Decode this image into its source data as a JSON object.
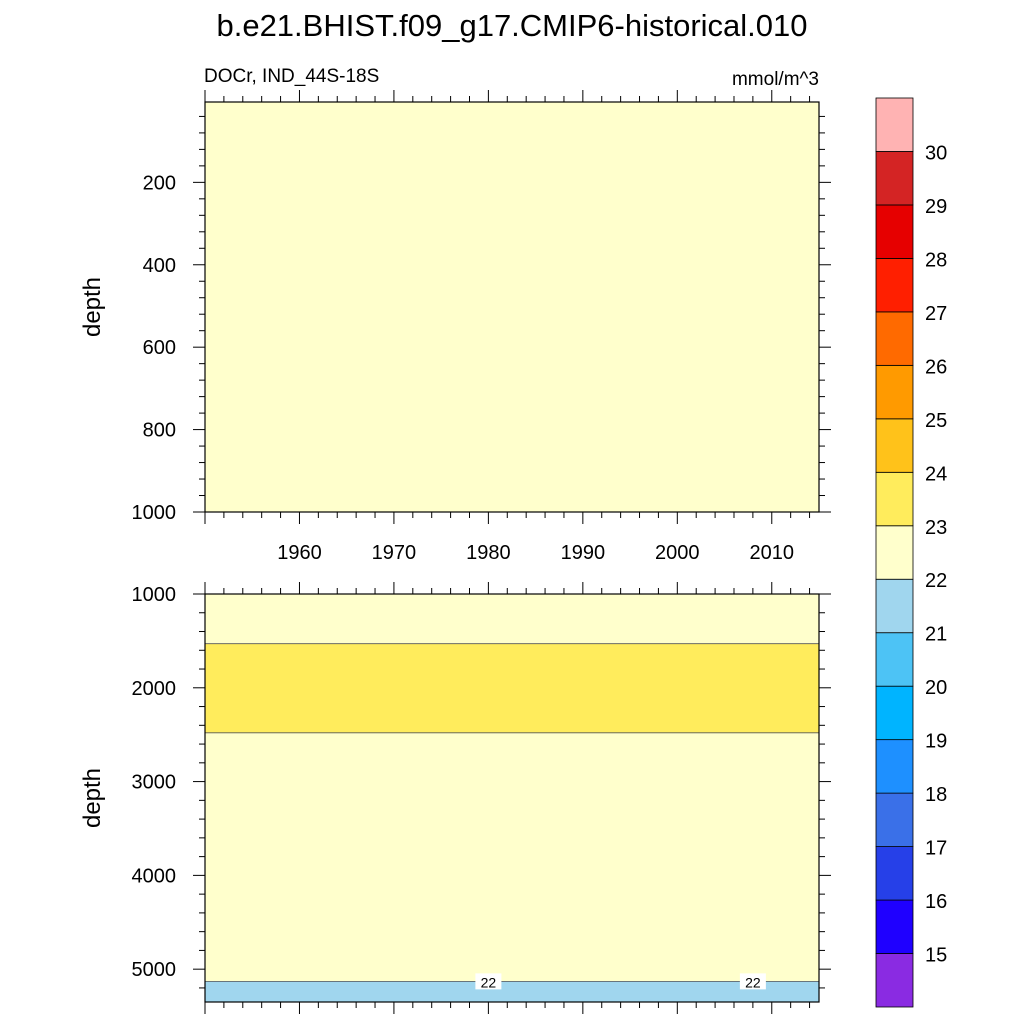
{
  "title": "b.e21.BHIST.f09_g17.CMIP6-historical.010",
  "subtitle_left": "DOCr, IND_44S-18S",
  "subtitle_right": "mmol/m^3",
  "colorbar": {
    "levels": [
      "15",
      "16",
      "17",
      "18",
      "19",
      "20",
      "21",
      "22",
      "23",
      "24",
      "25",
      "26",
      "27",
      "28",
      "29",
      "30"
    ],
    "colors": [
      "#8a2be2",
      "#1f00ff",
      "#2640e8",
      "#3a70e8",
      "#1e90ff",
      "#00b4ff",
      "#4dc3f5",
      "#a0d6ee",
      "#ffffcc",
      "#ffec5c",
      "#ffc21a",
      "#ff9a00",
      "#ff6a00",
      "#ff1f00",
      "#e60000",
      "#d42424",
      "#ffb3b3"
    ]
  },
  "chart_data": [
    {
      "type": "heatmap",
      "panel": "upper",
      "xlabel": "",
      "ylabel": "depth",
      "xlim": [
        1950,
        2015
      ],
      "ylim": [
        1000,
        5
      ],
      "x_ticks": [
        1960,
        1970,
        1980,
        1990,
        2000,
        2010
      ],
      "y_ticks": [
        200,
        400,
        600,
        800,
        1000
      ],
      "bands": [
        {
          "from_depth": 5,
          "to_depth": 1000,
          "range": "22-23",
          "color": "#ffffcc"
        }
      ]
    },
    {
      "type": "heatmap",
      "panel": "lower",
      "xlabel": "",
      "ylabel": "depth",
      "xlim": [
        1950,
        2015
      ],
      "ylim": [
        5350,
        1000
      ],
      "x_ticks": [
        1960,
        1970,
        1980,
        1990,
        2000,
        2010
      ],
      "y_ticks": [
        1000,
        2000,
        3000,
        4000,
        5000
      ],
      "bands": [
        {
          "from_depth": 1000,
          "to_depth": 1530,
          "range": "22-23",
          "color": "#ffffcc"
        },
        {
          "from_depth": 1530,
          "to_depth": 2480,
          "range": "23-24",
          "color": "#ffec5c"
        },
        {
          "from_depth": 2480,
          "to_depth": 5130,
          "range": "22-23",
          "color": "#ffffcc"
        },
        {
          "from_depth": 5130,
          "to_depth": 5350,
          "range": "21-22",
          "color": "#a0d6ee"
        }
      ],
      "contour_labels": [
        {
          "x": 1980,
          "depth": 5130,
          "text": "22"
        },
        {
          "x": 2008,
          "depth": 5130,
          "text": "22"
        }
      ]
    }
  ]
}
